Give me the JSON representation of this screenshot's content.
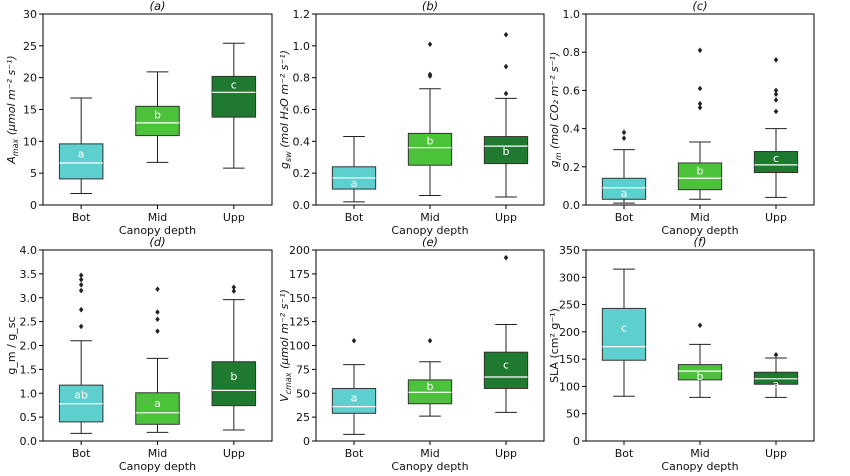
{
  "chart_data": [
    {
      "type": "box",
      "title": "(a)",
      "xlabel": "Canopy depth",
      "ylabel": "A_max (μmol m⁻² s⁻¹)",
      "ylim": [
        0,
        30
      ],
      "yticks": [
        "0",
        "5",
        "10",
        "15",
        "20",
        "25",
        "30"
      ],
      "categories": [
        "Bot",
        "Mid",
        "Upp"
      ],
      "boxes": [
        {
          "category": "Bot",
          "whisker_low": 1.8,
          "q1": 4.1,
          "median": 6.6,
          "q3": 9.6,
          "whisker_high": 16.8,
          "outliers": [],
          "letter": "a",
          "color": "#5ecfcf"
        },
        {
          "category": "Mid",
          "whisker_low": 6.7,
          "q1": 10.9,
          "median": 12.9,
          "q3": 15.5,
          "whisker_high": 20.9,
          "outliers": [],
          "letter": "b",
          "color": "#4bc23a"
        },
        {
          "category": "Upp",
          "whisker_low": 5.8,
          "q1": 13.8,
          "median": 17.7,
          "q3": 20.2,
          "whisker_high": 25.4,
          "outliers": [],
          "letter": "c",
          "color": "#1f7a30"
        }
      ]
    },
    {
      "type": "box",
      "title": "(b)",
      "xlabel": "Canopy depth",
      "ylabel": "g_sw (mol H₂O m⁻² s⁻¹)",
      "ylim": [
        0,
        1.2
      ],
      "yticks": [
        "0.0",
        "0.2",
        "0.4",
        "0.6",
        "0.8",
        "1.0",
        "1.2"
      ],
      "categories": [
        "Bot",
        "Mid",
        "Upp"
      ],
      "boxes": [
        {
          "category": "Bot",
          "whisker_low": 0.02,
          "q1": 0.1,
          "median": 0.17,
          "q3": 0.24,
          "whisker_high": 0.43,
          "outliers": [],
          "letter": "a",
          "color": "#5ecfcf"
        },
        {
          "category": "Mid",
          "whisker_low": 0.06,
          "q1": 0.25,
          "median": 0.36,
          "q3": 0.45,
          "whisker_high": 0.73,
          "outliers": [
            1.01,
            0.82,
            0.81
          ],
          "letter": "b",
          "color": "#4bc23a"
        },
        {
          "category": "Upp",
          "whisker_low": 0.05,
          "q1": 0.26,
          "median": 0.37,
          "q3": 0.43,
          "whisker_high": 0.67,
          "outliers": [
            1.07,
            0.87,
            0.7
          ],
          "letter": "b",
          "color": "#1f7a30"
        }
      ]
    },
    {
      "type": "box",
      "title": "(c)",
      "xlabel": "Canopy depth",
      "ylabel": "g_m (mol CO₂ m⁻² s⁻¹)",
      "ylim": [
        0,
        1.0
      ],
      "yticks": [
        "0.0",
        "0.2",
        "0.4",
        "0.6",
        "0.8",
        "1.0"
      ],
      "categories": [
        "Bot",
        "Mid",
        "Upp"
      ],
      "boxes": [
        {
          "category": "Bot",
          "whisker_low": 0.01,
          "q1": 0.03,
          "median": 0.09,
          "q3": 0.14,
          "whisker_high": 0.29,
          "outliers": [
            0.38,
            0.35
          ],
          "letter": "a",
          "color": "#5ecfcf"
        },
        {
          "category": "Mid",
          "whisker_low": 0.03,
          "q1": 0.08,
          "median": 0.14,
          "q3": 0.22,
          "whisker_high": 0.33,
          "outliers": [
            0.81,
            0.61,
            0.53,
            0.51
          ],
          "letter": "b",
          "color": "#4bc23a"
        },
        {
          "category": "Upp",
          "whisker_low": 0.04,
          "q1": 0.17,
          "median": 0.21,
          "q3": 0.28,
          "whisker_high": 0.4,
          "outliers": [
            0.76,
            0.6,
            0.58,
            0.55,
            0.49
          ],
          "letter": "c",
          "color": "#1f7a30"
        }
      ]
    },
    {
      "type": "box",
      "title": "(d)",
      "xlabel": "Canopy depth",
      "ylabel": "g_m / g_sc",
      "ylim": [
        0,
        4.0
      ],
      "yticks": [
        "0.0",
        "0.5",
        "1.0",
        "1.5",
        "2.0",
        "2.5",
        "3.0",
        "3.5",
        "4.0"
      ],
      "categories": [
        "Bot",
        "Mid",
        "Upp"
      ],
      "boxes": [
        {
          "category": "Bot",
          "whisker_low": 0.16,
          "q1": 0.4,
          "median": 0.78,
          "q3": 1.17,
          "whisker_high": 2.1,
          "outliers": [
            3.47,
            3.38,
            3.27,
            3.15,
            2.75,
            2.4
          ],
          "letter": "ab",
          "color": "#5ecfcf"
        },
        {
          "category": "Mid",
          "whisker_low": 0.18,
          "q1": 0.35,
          "median": 0.59,
          "q3": 1.01,
          "whisker_high": 1.73,
          "outliers": [
            3.18,
            2.7,
            2.55,
            2.3
          ],
          "letter": "a",
          "color": "#4bc23a"
        },
        {
          "category": "Upp",
          "whisker_low": 0.23,
          "q1": 0.74,
          "median": 1.06,
          "q3": 1.66,
          "whisker_high": 2.96,
          "outliers": [
            3.22,
            3.14
          ],
          "letter": "b",
          "color": "#1f7a30"
        }
      ]
    },
    {
      "type": "box",
      "title": "(e)",
      "xlabel": "Canopy depth",
      "ylabel": "V_cmax (μmol m⁻² s⁻¹)",
      "ylim": [
        0,
        200
      ],
      "yticks": [
        "0",
        "25",
        "50",
        "75",
        "100",
        "125",
        "150",
        "175",
        "200"
      ],
      "categories": [
        "Bot",
        "Mid",
        "Upp"
      ],
      "boxes": [
        {
          "category": "Bot",
          "whisker_low": 7,
          "q1": 29,
          "median": 36,
          "q3": 55,
          "whisker_high": 80,
          "outliers": [
            105
          ],
          "letter": "a",
          "color": "#5ecfcf"
        },
        {
          "category": "Mid",
          "whisker_low": 26,
          "q1": 39,
          "median": 51,
          "q3": 64,
          "whisker_high": 83,
          "outliers": [
            105
          ],
          "letter": "b",
          "color": "#4bc23a"
        },
        {
          "category": "Upp",
          "whisker_low": 30,
          "q1": 55,
          "median": 67,
          "q3": 93,
          "whisker_high": 122,
          "outliers": [
            192
          ],
          "letter": "c",
          "color": "#1f7a30"
        }
      ]
    },
    {
      "type": "box",
      "title": "(f)",
      "xlabel": "Canopy depth",
      "ylabel": "SLA (cm² g⁻¹)",
      "ylim": [
        0,
        350
      ],
      "yticks": [
        "0",
        "50",
        "100",
        "150",
        "200",
        "250",
        "300",
        "350"
      ],
      "categories": [
        "Bot",
        "Mid",
        "Upp"
      ],
      "boxes": [
        {
          "category": "Bot",
          "whisker_low": 82,
          "q1": 148,
          "median": 173,
          "q3": 243,
          "whisker_high": 315,
          "outliers": [],
          "letter": "c",
          "color": "#5ecfcf"
        },
        {
          "category": "Mid",
          "whisker_low": 80,
          "q1": 112,
          "median": 128,
          "q3": 140,
          "whisker_high": 177,
          "outliers": [
            212
          ],
          "letter": "b",
          "color": "#4bc23a"
        },
        {
          "category": "Upp",
          "whisker_low": 80,
          "q1": 104,
          "median": 114,
          "q3": 126,
          "whisker_high": 152,
          "outliers": [
            158
          ],
          "letter": "a",
          "color": "#1f7a30"
        }
      ]
    }
  ]
}
